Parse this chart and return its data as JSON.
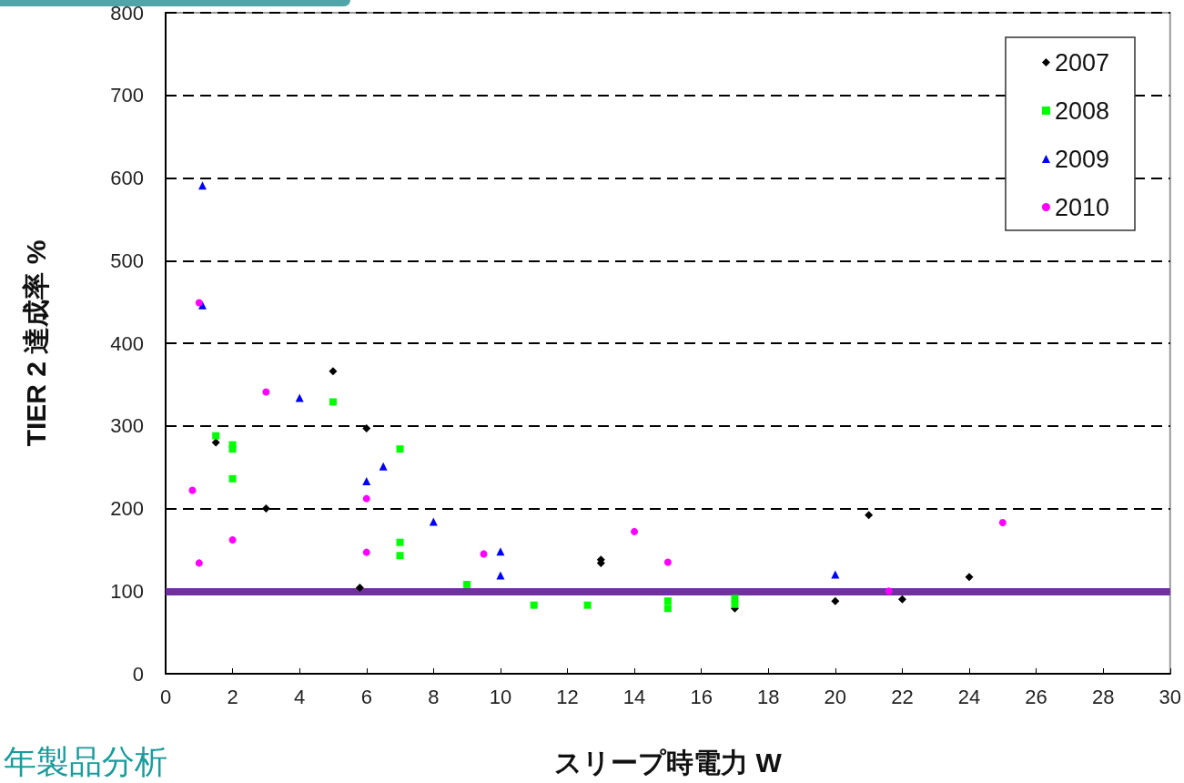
{
  "chart_data": {
    "type": "scatter",
    "xlabel": "スリープ時電力 W",
    "ylabel": "TIER 2 達成率 %",
    "annotations": [
      "年製品分析"
    ],
    "xlim": [
      0,
      30
    ],
    "xticks": [
      0,
      2,
      4,
      6,
      8,
      10,
      12,
      14,
      16,
      18,
      20,
      22,
      24,
      26,
      28,
      30
    ],
    "ylim": [
      0,
      800
    ],
    "yticks": [
      0,
      100,
      200,
      300,
      400,
      500,
      600,
      700,
      800
    ],
    "grid": "y",
    "legend": "top right",
    "ref_lines": [
      {
        "axis": "y",
        "value": 100,
        "color": "#7030a0"
      }
    ],
    "series": [
      {
        "name": "2007",
        "color": "#000000",
        "marker": "diamond",
        "x": [
          1.5,
          3,
          5,
          6,
          5.8,
          13,
          13,
          17,
          20,
          21,
          22,
          24
        ],
        "values": [
          280,
          200,
          366,
          297,
          104,
          134,
          138,
          79,
          88,
          192,
          90,
          117
        ]
      },
      {
        "name": "2008",
        "color": "#00ff00",
        "marker": "square",
        "x": [
          1.5,
          2,
          2,
          2,
          5,
          7,
          7,
          7,
          9,
          11,
          12.6,
          15,
          15,
          17,
          17
        ],
        "values": [
          288,
          277,
          272,
          236,
          329,
          272,
          159,
          143,
          108,
          83,
          83,
          88,
          79,
          91,
          84
        ]
      },
      {
        "name": "2009",
        "color": "#0000ff",
        "marker": "triangle",
        "x": [
          1.1,
          1.1,
          4,
          6,
          6.5,
          8,
          10,
          10,
          20
        ],
        "values": [
          591,
          446,
          334,
          233,
          251,
          184,
          148,
          119,
          120
        ]
      },
      {
        "name": "2010",
        "color": "#ff00ff",
        "marker": "circle",
        "x": [
          1,
          0.8,
          1,
          2,
          3,
          6,
          6,
          9.5,
          14,
          15,
          21.6,
          25
        ],
        "values": [
          449,
          222,
          134,
          162,
          341,
          212,
          147,
          145,
          172,
          135,
          100,
          183
        ]
      }
    ]
  }
}
